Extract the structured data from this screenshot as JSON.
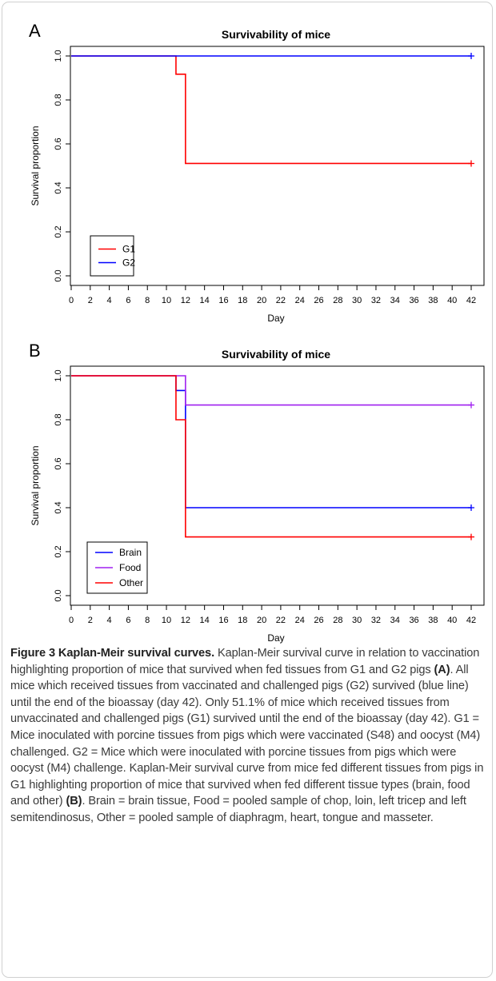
{
  "chart_data": [
    {
      "type": "line",
      "panel": "A",
      "title": "Survivability of mice",
      "xlabel": "Day",
      "ylabel": "Survival proportion",
      "xlim": [
        0,
        42
      ],
      "ylim": [
        0,
        1
      ],
      "x_ticks": [
        0,
        2,
        4,
        6,
        8,
        10,
        12,
        14,
        16,
        18,
        20,
        22,
        24,
        26,
        28,
        30,
        32,
        34,
        36,
        38,
        40,
        42
      ],
      "y_ticks": [
        "0.0",
        "0.2",
        "0.4",
        "0.6",
        "0.8",
        "1.0"
      ],
      "legend_position": "bottom-left",
      "step": true,
      "censor_mark": "+",
      "series": [
        {
          "name": "G1",
          "color": "#ff0000",
          "x": [
            0,
            11,
            12,
            42
          ],
          "y": [
            1.0,
            0.917,
            0.511,
            0.511
          ]
        },
        {
          "name": "G2",
          "color": "#0000ff",
          "x": [
            0,
            42
          ],
          "y": [
            1.0,
            1.0
          ]
        }
      ]
    },
    {
      "type": "line",
      "panel": "B",
      "title": "Survivability of mice",
      "xlabel": "Day",
      "ylabel": "Survival proportion",
      "xlim": [
        0,
        42
      ],
      "ylim": [
        0,
        1
      ],
      "x_ticks": [
        0,
        2,
        4,
        6,
        8,
        10,
        12,
        14,
        16,
        18,
        20,
        22,
        24,
        26,
        28,
        30,
        32,
        34,
        36,
        38,
        40,
        42
      ],
      "y_ticks": [
        "0.0",
        "0.2",
        "0.4",
        "0.6",
        "0.8",
        "1.0"
      ],
      "legend_position": "bottom-left",
      "step": true,
      "censor_mark": "+",
      "series": [
        {
          "name": "Brain",
          "color": "#0000ff",
          "x": [
            0,
            11,
            12,
            42
          ],
          "y": [
            1.0,
            0.933,
            0.4,
            0.4
          ]
        },
        {
          "name": "Food",
          "color": "#a020f0",
          "x": [
            0,
            12,
            42
          ],
          "y": [
            1.0,
            0.867,
            0.867
          ]
        },
        {
          "name": "Other",
          "color": "#ff0000",
          "x": [
            0,
            11,
            12,
            42
          ],
          "y": [
            1.0,
            0.8,
            0.267,
            0.267
          ]
        }
      ]
    }
  ],
  "caption": {
    "title": "Figure 3 Kaplan-Meir survival curves.",
    "part1": " Kaplan-Meir survival curve in relation to vaccination highlighting proportion of mice that survived when fed tissues from G1 and G2 pigs ",
    "ref_a": "(A)",
    "part2": ". All mice which received tissues from vaccinated and challenged pigs (G2) survived (blue line) until the end of the bioassay (day 42). Only 51.1% of mice which received tissues from unvaccinated and challenged pigs (G1) survived until the end of the bioassay (day 42). G1 = Mice inoculated with porcine tissues from pigs which were vaccinated (S48) and oocyst (M4) challenged. G2 = Mice which were inoculated with porcine tissues from pigs which were oocyst (M4) challenge. Kaplan-Meir survival curve from mice fed different tissues from pigs in G1 highlighting proportion of mice that survived when fed different tissue types (brain, food and other) ",
    "ref_b": "(B)",
    "part3": ". Brain = brain tissue, Food = pooled sample of chop, loin, left tricep and left semitendinosus, Other = pooled sample of diaphragm, heart, tongue and masseter."
  }
}
